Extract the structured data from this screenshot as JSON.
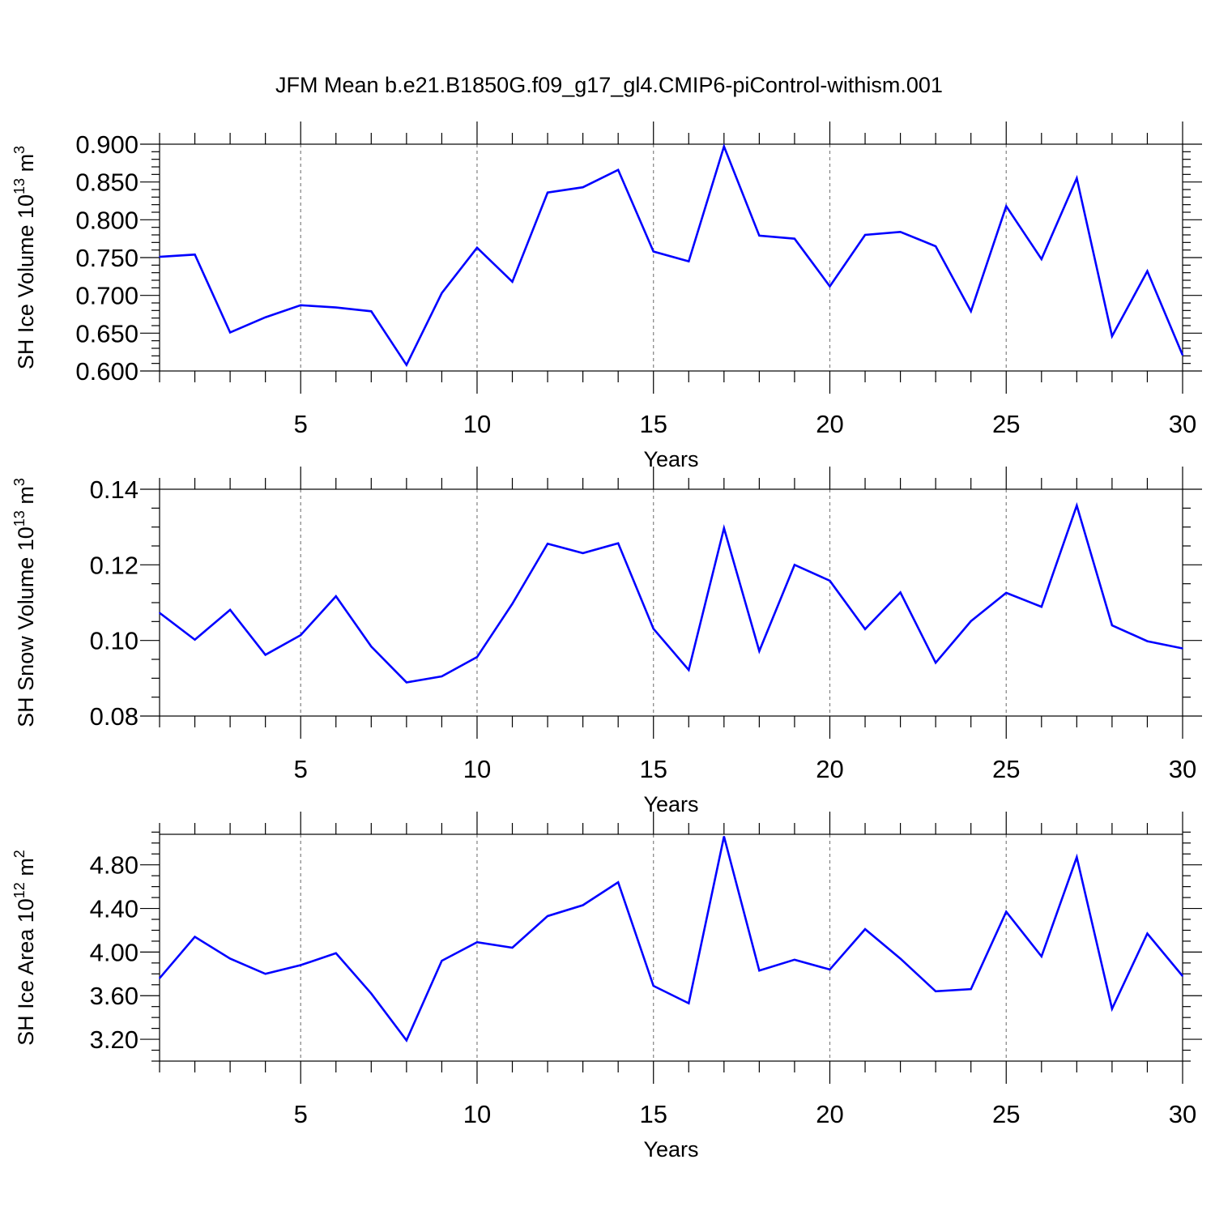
{
  "figure_title": "JFM Mean b.e21.B1850G.f09_g17_gl4.CMIP6-piControl-withism.001",
  "colors": {
    "line": "#0000ff",
    "axis": "#000000",
    "grid": "#808080"
  },
  "chart_data": [
    {
      "type": "line",
      "title": "JFM Mean b.e21.B1850G.f09_g17_gl4.CMIP6-piControl-withism.001",
      "xlabel": "Years",
      "ylabel": {
        "main": "SH Ice Volume 10",
        "exp": "13",
        "unit": " m",
        "unit_exp": "3"
      },
      "xlim": [
        1,
        30
      ],
      "ylim": [
        0.6,
        0.9
      ],
      "xticks": [
        5,
        10,
        15,
        20,
        25,
        30
      ],
      "x_minor_step": 1,
      "yticks": [
        0.6,
        0.65,
        0.7,
        0.75,
        0.8,
        0.85,
        0.9
      ],
      "ytick_labels": [
        "0.600",
        "0.650",
        "0.700",
        "0.750",
        "0.800",
        "0.850",
        "0.900"
      ],
      "y_minor_step": 0.01,
      "grid_x": true,
      "x": [
        1,
        2,
        3,
        4,
        5,
        6,
        7,
        8,
        9,
        10,
        11,
        12,
        13,
        14,
        15,
        16,
        17,
        18,
        19,
        20,
        21,
        22,
        23,
        24,
        25,
        26,
        27,
        28,
        29,
        30
      ],
      "series": [
        {
          "name": "SH Ice Volume",
          "values": [
            0.751,
            0.754,
            0.651,
            0.671,
            0.687,
            0.684,
            0.679,
            0.608,
            0.703,
            0.763,
            0.718,
            0.836,
            0.843,
            0.866,
            0.758,
            0.745,
            0.897,
            0.779,
            0.775,
            0.712,
            0.78,
            0.784,
            0.765,
            0.679,
            0.818,
            0.748,
            0.855,
            0.646,
            0.732,
            0.621
          ]
        }
      ]
    },
    {
      "type": "line",
      "xlabel": "Years",
      "ylabel": {
        "main": "SH Snow Volume 10",
        "exp": "13",
        "unit": " m",
        "unit_exp": "3"
      },
      "xlim": [
        1,
        30
      ],
      "ylim": [
        0.08,
        0.14
      ],
      "xticks": [
        5,
        10,
        15,
        20,
        25,
        30
      ],
      "x_minor_step": 1,
      "yticks": [
        0.08,
        0.1,
        0.12,
        0.14
      ],
      "ytick_labels": [
        "0.08",
        "0.10",
        "0.12",
        "0.14"
      ],
      "y_minor_step": 0.005,
      "grid_x": true,
      "x": [
        1,
        2,
        3,
        4,
        5,
        6,
        7,
        8,
        9,
        10,
        11,
        12,
        13,
        14,
        15,
        16,
        17,
        18,
        19,
        20,
        21,
        22,
        23,
        24,
        25,
        26,
        27,
        28,
        29,
        30
      ],
      "series": [
        {
          "name": "SH Snow Volume",
          "values": [
            0.1073,
            0.1002,
            0.1081,
            0.0962,
            0.1014,
            0.1117,
            0.0984,
            0.0889,
            0.0905,
            0.0956,
            0.1097,
            0.1256,
            0.1231,
            0.1257,
            0.1031,
            0.0922,
            0.1297,
            0.0972,
            0.12,
            0.1158,
            0.103,
            0.1127,
            0.0941,
            0.1051,
            0.1126,
            0.1089,
            0.1357,
            0.104,
            0.0998,
            0.0979
          ]
        }
      ]
    },
    {
      "type": "line",
      "xlabel": "Years",
      "ylabel": {
        "main": "SH Ice Area 10",
        "exp": "12",
        "unit": " m",
        "unit_exp": "2"
      },
      "xlim": [
        1,
        30
      ],
      "ylim": [
        3.0,
        5.08
      ],
      "xticks": [
        5,
        10,
        15,
        20,
        25,
        30
      ],
      "x_minor_step": 1,
      "yticks": [
        3.2,
        3.6,
        4.0,
        4.4,
        4.8
      ],
      "ytick_labels": [
        "3.20",
        "3.60",
        "4.00",
        "4.40",
        "4.80"
      ],
      "y_minor_step": 0.1,
      "grid_x": true,
      "x": [
        1,
        2,
        3,
        4,
        5,
        6,
        7,
        8,
        9,
        10,
        11,
        12,
        13,
        14,
        15,
        16,
        17,
        18,
        19,
        20,
        21,
        22,
        23,
        24,
        25,
        26,
        27,
        28,
        29,
        30
      ],
      "series": [
        {
          "name": "SH Ice Area",
          "values": [
            3.76,
            4.14,
            3.94,
            3.8,
            3.88,
            3.99,
            3.62,
            3.19,
            3.92,
            4.09,
            4.04,
            4.33,
            4.43,
            4.64,
            3.69,
            3.53,
            5.06,
            3.83,
            3.93,
            3.84,
            4.21,
            3.94,
            3.64,
            3.66,
            4.37,
            3.96,
            4.87,
            3.48,
            4.17,
            3.78
          ]
        }
      ]
    }
  ]
}
